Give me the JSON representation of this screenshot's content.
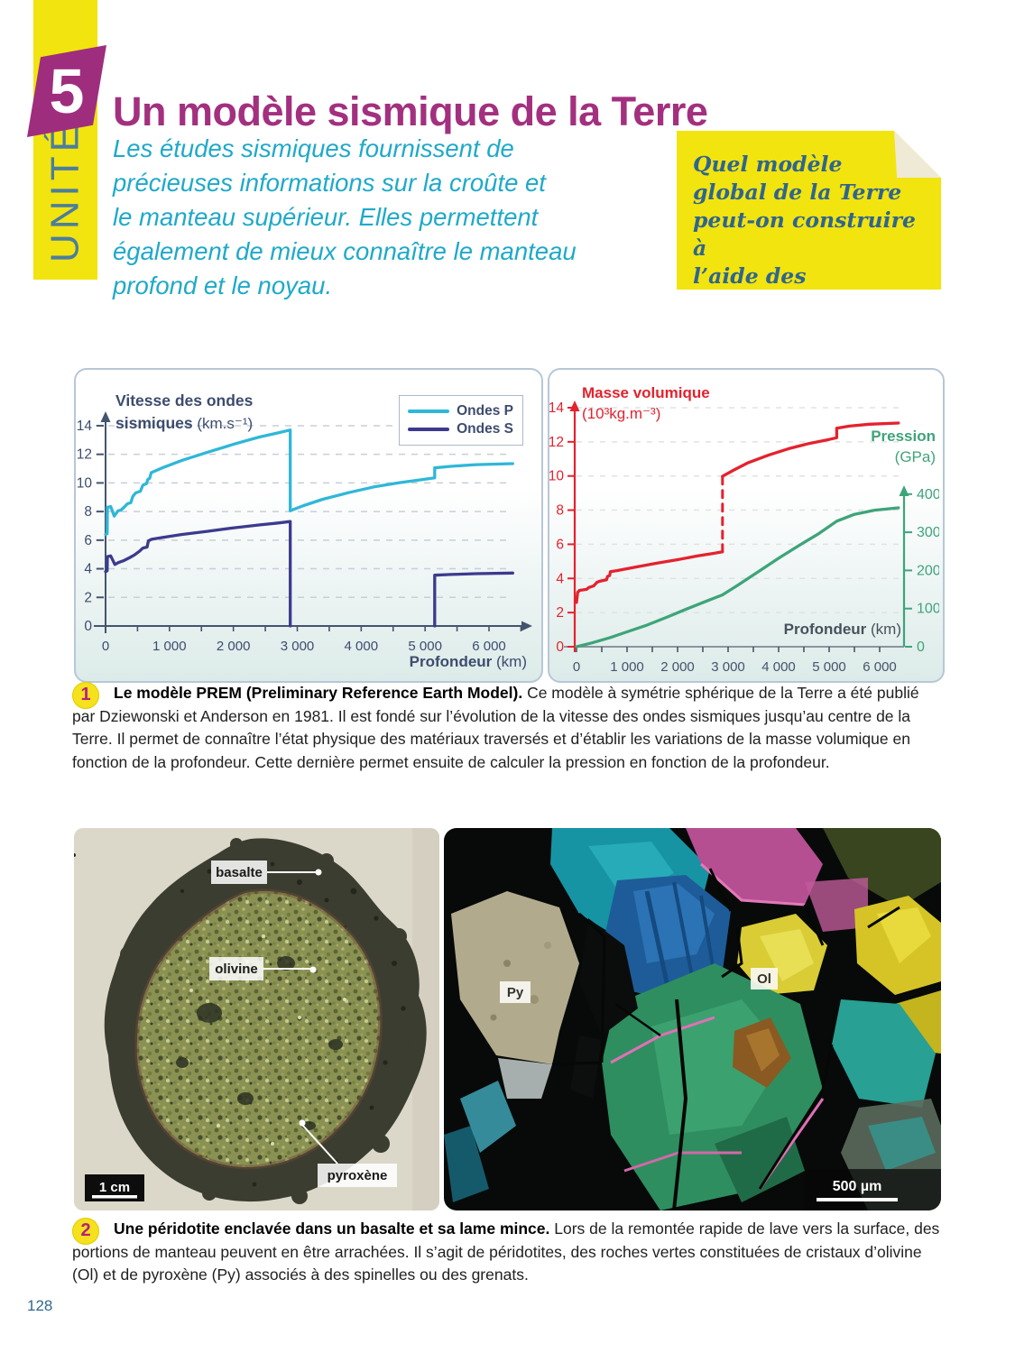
{
  "page": {
    "number": "128"
  },
  "unit": {
    "label": "UNITÉ",
    "number": "5"
  },
  "header": {
    "title": "Un modèle sismique de la Terre",
    "intro": "Les études sismiques fournissent de\nprécieuses informations sur la croûte et\nle manteau supérieur. Elles permettent\négalement de mieux connaître le manteau\nprofond et le noyau.",
    "note": "Quel modèle\nglobal de la Terre\npeut-on construire à\nl’aide des informations\nsismiques?"
  },
  "colors": {
    "title": "#a3307f",
    "intro": "#1fa9c9",
    "unit_band": "#f2e40e",
    "unit_text": "#4b7d9e",
    "note_text": "#2f6590",
    "badge_bg": "#f5e11c",
    "badge_number": "#b5207f",
    "ondes_p": "#2fb7d8",
    "ondes_s": "#3c3a8e",
    "masse_volumique": "#e4222e",
    "pression": "#3ea47a",
    "page_number": "#33678e"
  },
  "chart_data": [
    {
      "type": "line",
      "title": "Vitesse des ondes sismiques",
      "title_unit": "(km.s⁻¹)",
      "xlabel": "Profondeur",
      "xlabel_unit": "(km)",
      "xlim": [
        0,
        6500
      ],
      "ylim": [
        0,
        15
      ],
      "grid": "dashed horizontal",
      "legend_position": "top-right",
      "xticks": [
        0,
        1000,
        2000,
        3000,
        4000,
        5000,
        6000
      ],
      "xtick_labels": [
        "0",
        "1 000",
        "2 000",
        "3 000",
        "4 000",
        "5 000",
        "6 000"
      ],
      "yticks": [
        0,
        2,
        4,
        6,
        8,
        10,
        12,
        14
      ],
      "series": [
        {
          "name": "Ondes P",
          "color": "#2fb7d8",
          "segments": [
            [
              [
                0,
                6.4
              ],
              [
                25,
                6.45
              ],
              [
                28,
                8.3
              ],
              [
                80,
                8.35
              ],
              [
                135,
                7.68
              ],
              [
                195,
                8.05
              ],
              [
                240,
                8.1
              ],
              [
                290,
                8.3
              ],
              [
                345,
                8.55
              ],
              [
                395,
                8.62
              ],
              [
                425,
                9.05
              ],
              [
                470,
                9.3
              ],
              [
                545,
                9.42
              ],
              [
                585,
                9.85
              ],
              [
                640,
                9.95
              ],
              [
                662,
                10.25
              ],
              [
                690,
                10.32
              ],
              [
                715,
                10.72
              ],
              [
                900,
                11.08
              ],
              [
                1200,
                11.58
              ],
              [
                1600,
                12.15
              ],
              [
                2000,
                12.7
              ],
              [
                2400,
                13.2
              ],
              [
                2700,
                13.5
              ],
              [
                2890,
                13.7
              ],
              [
                2890,
                8.06
              ],
              [
                3100,
                8.42
              ],
              [
                3400,
                8.86
              ],
              [
                3800,
                9.32
              ],
              [
                4200,
                9.72
              ],
              [
                4600,
                10.02
              ],
              [
                5000,
                10.26
              ],
              [
                5150,
                10.35
              ],
              [
                5150,
                11.05
              ],
              [
                5400,
                11.16
              ],
              [
                5800,
                11.28
              ],
              [
                6371,
                11.35
              ]
            ]
          ]
        },
        {
          "name": "Ondes S",
          "color": "#3c3a8e",
          "segments": [
            [
              [
                0,
                3.8
              ],
              [
                25,
                3.85
              ],
              [
                28,
                4.85
              ],
              [
                80,
                4.9
              ],
              [
                145,
                4.3
              ],
              [
                210,
                4.45
              ],
              [
                290,
                4.58
              ],
              [
                370,
                4.76
              ],
              [
                450,
                4.96
              ],
              [
                530,
                5.22
              ],
              [
                585,
                5.45
              ],
              [
                650,
                5.52
              ],
              [
                670,
                5.95
              ],
              [
                720,
                6.06
              ],
              [
                900,
                6.2
              ],
              [
                1200,
                6.4
              ],
              [
                1600,
                6.62
              ],
              [
                2000,
                6.86
              ],
              [
                2400,
                7.06
              ],
              [
                2700,
                7.2
              ],
              [
                2890,
                7.3
              ],
              [
                2890,
                0
              ]
            ],
            [
              [
                5150,
                0
              ],
              [
                5150,
                3.55
              ],
              [
                5400,
                3.6
              ],
              [
                5800,
                3.66
              ],
              [
                6371,
                3.7
              ]
            ]
          ]
        }
      ]
    },
    {
      "type": "line",
      "left_axis": {
        "title": "Masse volumique",
        "unit": "(10³kg.m⁻³)",
        "color": "#e4222e",
        "ticks": [
          0,
          2,
          4,
          6,
          8,
          10,
          12,
          14
        ],
        "lim": [
          0,
          15
        ]
      },
      "right_axis": {
        "title": "Pression",
        "unit": "(GPa)",
        "color": "#3ea47a",
        "ticks": [
          0,
          100,
          200,
          300,
          400
        ],
        "lim": [
          0,
          450
        ]
      },
      "xlabel": "Profondeur",
      "xlabel_unit": "(km)",
      "xlim": [
        0,
        6500
      ],
      "xticks": [
        0,
        1000,
        2000,
        3000,
        4000,
        5000,
        6000
      ],
      "xtick_labels": [
        "0",
        "1 000",
        "2 000",
        "3 000",
        "4 000",
        "5 000",
        "6 000"
      ],
      "series": [
        {
          "name": "Masse volumique",
          "axis": "left",
          "color": "#e4222e",
          "segments": [
            [
              [
                0,
                2.6
              ],
              [
                22,
                3.18
              ],
              [
                60,
                3.3
              ],
              [
                200,
                3.36
              ],
              [
                245,
                3.47
              ],
              [
                340,
                3.56
              ],
              [
                400,
                3.76
              ],
              [
                450,
                3.83
              ],
              [
                595,
                3.92
              ],
              [
                615,
                4.12
              ],
              [
                655,
                4.17
              ],
              [
                672,
                4.4
              ],
              [
                800,
                4.46
              ],
              [
                1200,
                4.68
              ],
              [
                1600,
                4.9
              ],
              [
                2000,
                5.1
              ],
              [
                2400,
                5.32
              ],
              [
                2700,
                5.46
              ],
              [
                2890,
                5.56
              ]
            ],
            [
              [
                2890,
                9.98
              ],
              [
                3100,
                10.33
              ],
              [
                3400,
                10.78
              ],
              [
                3800,
                11.22
              ],
              [
                4200,
                11.6
              ],
              [
                4600,
                11.9
              ],
              [
                5000,
                12.14
              ],
              [
                5150,
                12.24
              ],
              [
                5150,
                12.8
              ],
              [
                5400,
                12.92
              ],
              [
                5800,
                13.03
              ],
              [
                6371,
                13.1
              ]
            ]
          ],
          "dashed_segments": [
            [
              [
                2890,
                5.56
              ],
              [
                2890,
                9.98
              ]
            ]
          ]
        },
        {
          "name": "Pression",
          "axis": "right",
          "color": "#3ea47a",
          "segments": [
            [
              [
                0,
                0
              ],
              [
                300,
                10
              ],
              [
                670,
                24
              ],
              [
                1000,
                39
              ],
              [
                1400,
                57
              ],
              [
                1800,
                78
              ],
              [
                2200,
                100
              ],
              [
                2600,
                121
              ],
              [
                2890,
                136
              ],
              [
                3200,
                162
              ],
              [
                3600,
                197
              ],
              [
                4000,
                232
              ],
              [
                4400,
                265
              ],
              [
                4800,
                297
              ],
              [
                5150,
                329
              ],
              [
                5500,
                347
              ],
              [
                5900,
                358
              ],
              [
                6371,
                364
              ]
            ]
          ]
        }
      ]
    }
  ],
  "captions": [
    {
      "number": "1",
      "bold": "Le modèle PREM (Preliminary Reference Earth Model).",
      "text": "Ce modèle à symétrie sphérique de la Terre a été publié par Dziewonski et Anderson en 1981. Il est fondé sur l’évolution de la vitesse des ondes sismiques jusqu’au centre de la Terre. Il permet de connaître l’état physique des matériaux traversés et d’établir les variations de la masse volumique en fonction de la profondeur. Cette dernière permet ensuite de calculer la pression en fonction de la profondeur."
    },
    {
      "number": "2",
      "bold": "Une péridotite enclavée dans un basalte et sa lame mince.",
      "text": "Lors de la remontée rapide de lave vers la surface, des portions de manteau peuvent en être arrachées. Il s’agit de péridotites, des roches vertes constituées de cristaux d’olivine (Ol) et de pyroxène (Py) associés à des spinelles ou des grenats."
    }
  ],
  "photos": {
    "rock": {
      "labels": {
        "basalte": "basalte",
        "olivine": "olivine",
        "pyroxene": "pyroxène"
      },
      "scale": "1 cm"
    },
    "thin_section": {
      "labels": {
        "py": "Py",
        "ol": "Ol"
      },
      "scale": "500 µm"
    }
  }
}
